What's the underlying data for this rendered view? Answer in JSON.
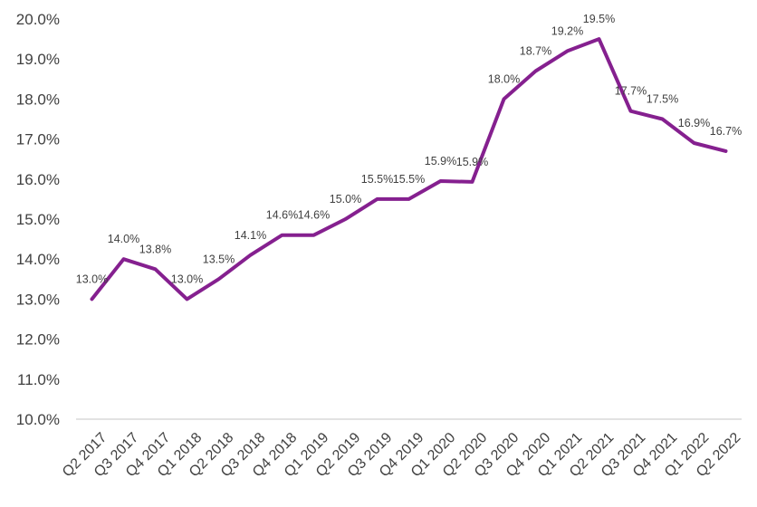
{
  "chart_data": {
    "type": "line",
    "title": "",
    "xlabel": "",
    "ylabel": "",
    "categories": [
      "Q2 2017",
      "Q3 2017",
      "Q4 2017",
      "Q1 2018",
      "Q2 2018",
      "Q3 2018",
      "Q4 2018",
      "Q1 2019",
      "Q2 2019",
      "Q3 2019",
      "Q4 2019",
      "Q1 2020",
      "Q2 2020",
      "Q3 2020",
      "Q4 2020",
      "Q1 2021",
      "Q2 2021",
      "Q3 2021",
      "Q4 2021",
      "Q1 2022",
      "Q2 2022"
    ],
    "series": [
      {
        "values": [
          13.0,
          14.0,
          13.75,
          13.0,
          13.5,
          14.1,
          14.6,
          14.6,
          15.0,
          15.5,
          15.5,
          15.95,
          15.93,
          18.0,
          18.7,
          19.2,
          19.5,
          17.7,
          17.5,
          16.9,
          16.7
        ],
        "labels": [
          "13.0%",
          "14.0%",
          "13.8%",
          "13.0%",
          "13.5%",
          "14.1%",
          "14.6%",
          "14.6%",
          "15.0%",
          "15.5%",
          "15.5%",
          "15.9%",
          "15.9%",
          "18.0%",
          "18.7%",
          "19.2%",
          "19.5%",
          "17.7%",
          "17.5%",
          "16.9%",
          "16.7%"
        ],
        "color": "#85208f"
      }
    ],
    "ylim": [
      10,
      20
    ],
    "yticks": [
      "10.0%",
      "11.0%",
      "12.0%",
      "13.0%",
      "14.0%",
      "15.0%",
      "16.0%",
      "17.0%",
      "18.0%",
      "19.0%",
      "20.0%"
    ],
    "grid": false,
    "legend": "none",
    "axis_color": "#d9d9d9"
  }
}
